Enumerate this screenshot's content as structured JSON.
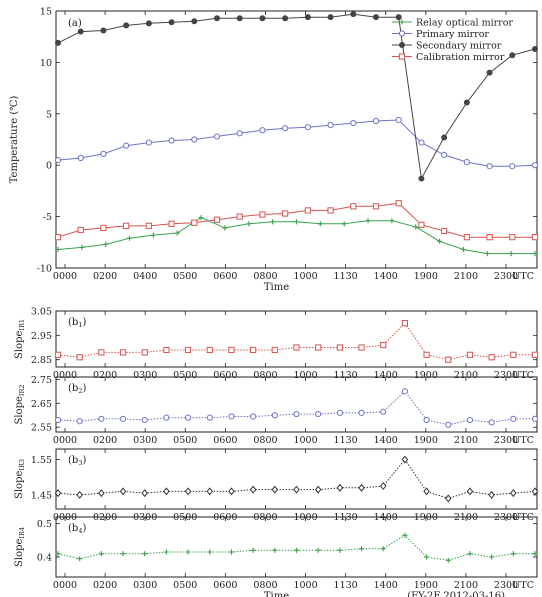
{
  "chart_data": [
    {
      "type": "line",
      "panel_label": "(a)",
      "ylabel": "Temperature (℃)",
      "xlabel": "Time",
      "x_ticklabels": [
        "0000",
        "0200",
        "0400",
        "0500",
        "0600",
        "0800",
        "1000",
        "1130",
        "1400",
        "1900",
        "2100",
        "2300",
        "UTC"
      ],
      "ylim": [
        -10,
        15
      ],
      "y_ticks": [
        "15",
        "10",
        "5",
        "0",
        "-5",
        "-10"
      ],
      "legend_position": "top-right",
      "series": [
        {
          "name": "Relay optical mirror",
          "color": "#3aa34a",
          "marker": "plus",
          "values": [
            -8.2,
            -8.0,
            -7.7,
            -7.1,
            -6.8,
            -6.6,
            -5.1,
            -6.1,
            -5.7,
            -5.5,
            -5.5,
            -5.7,
            -5.7,
            -5.4,
            -5.4,
            -6.0,
            -7.4,
            -8.2,
            -8.6,
            -8.6,
            -8.6
          ]
        },
        {
          "name": "Primary mirror",
          "color": "#6f72c9",
          "marker": "circle",
          "values": [
            0.5,
            0.7,
            1.1,
            1.9,
            2.2,
            2.4,
            2.5,
            2.8,
            3.1,
            3.4,
            3.6,
            3.7,
            3.9,
            4.1,
            4.3,
            4.4,
            2.2,
            1.0,
            0.3,
            -0.1,
            -0.1,
            0.0
          ]
        },
        {
          "name": "Secondary mirror",
          "color": "#444444",
          "marker": "dot",
          "values": [
            11.9,
            13.0,
            13.1,
            13.6,
            13.8,
            13.9,
            14.0,
            14.3,
            14.3,
            14.3,
            14.3,
            14.4,
            14.4,
            14.7,
            14.4,
            14.4,
            -1.3,
            2.7,
            6.1,
            9.0,
            10.7,
            11.3
          ]
        },
        {
          "name": "Calibration mirror",
          "color": "#d9534f",
          "marker": "square",
          "values": [
            -7.0,
            -6.3,
            -6.1,
            -5.9,
            -5.9,
            -5.7,
            -5.6,
            -5.3,
            -5.0,
            -4.8,
            -4.7,
            -4.4,
            -4.4,
            -4.0,
            -4.0,
            -3.7,
            -5.8,
            -6.4,
            -7.0,
            -7.0,
            -7.0,
            -7.0
          ]
        }
      ]
    },
    {
      "type": "line",
      "panel_label": "(b",
      "panel_label_sub": "1",
      "ylabel": "Slope",
      "ylabel_sub": "IR1",
      "ylim": [
        2.82,
        3.05
      ],
      "y_ticks": [
        "3.05",
        "2.95",
        "2.85"
      ],
      "x_ticklabels": [
        "0000",
        "0200",
        "0300",
        "0500",
        "0600",
        "0800",
        "1000",
        "1130",
        "1400",
        "1900",
        "2100",
        "2300",
        "UTC"
      ],
      "series": [
        {
          "color": "#d9534f",
          "marker": "square",
          "values": [
            2.87,
            2.86,
            2.88,
            2.88,
            2.88,
            2.89,
            2.89,
            2.89,
            2.89,
            2.89,
            2.89,
            2.9,
            2.9,
            2.9,
            2.9,
            2.91,
            3.0,
            2.87,
            2.85,
            2.87,
            2.86,
            2.87,
            2.87
          ]
        }
      ]
    },
    {
      "type": "line",
      "panel_label": "(b",
      "panel_label_sub": "2",
      "ylabel": "Slope",
      "ylabel_sub": "IR2",
      "ylim": [
        2.53,
        2.76
      ],
      "y_ticks": [
        "2.75",
        "2.65",
        "2.55"
      ],
      "x_ticklabels": [
        "0000",
        "0200",
        "0300",
        "0500",
        "0600",
        "0800",
        "1000",
        "1130",
        "1400",
        "1900",
        "2100",
        "2300",
        "UTC"
      ],
      "series": [
        {
          "color": "#6f72c9",
          "marker": "circle",
          "values": [
            2.58,
            2.575,
            2.585,
            2.585,
            2.58,
            2.59,
            2.59,
            2.59,
            2.595,
            2.595,
            2.6,
            2.605,
            2.605,
            2.61,
            2.61,
            2.615,
            2.7,
            2.58,
            2.56,
            2.58,
            2.57,
            2.585,
            2.585
          ]
        }
      ]
    },
    {
      "type": "line",
      "panel_label": "(b",
      "panel_label_sub": "3",
      "ylabel": "Slope",
      "ylabel_sub": "IR3",
      "ylim": [
        1.41,
        1.58
      ],
      "y_ticks": [
        "1.55",
        "1.45"
      ],
      "x_ticklabels": [
        "0000",
        "0200",
        "0300",
        "0500",
        "0600",
        "0800",
        "1000",
        "1130",
        "1400",
        "1900",
        "2100",
        "2300",
        "UTC"
      ],
      "series": [
        {
          "color": "#333333",
          "marker": "diamond",
          "values": [
            1.455,
            1.45,
            1.455,
            1.46,
            1.455,
            1.46,
            1.46,
            1.46,
            1.46,
            1.465,
            1.465,
            1.465,
            1.465,
            1.47,
            1.47,
            1.475,
            1.55,
            1.46,
            1.44,
            1.46,
            1.45,
            1.455,
            1.46
          ]
        }
      ]
    },
    {
      "type": "line",
      "panel_label": "(b",
      "panel_label_sub": "4",
      "ylabel": "Slope",
      "ylabel_sub": "IR4",
      "xlabel": "Time",
      "ylim": [
        0.34,
        0.52
      ],
      "y_ticks": [
        "0.5",
        "0.4"
      ],
      "x_ticklabels": [
        "0000",
        "0200",
        "0300",
        "0500",
        "0600",
        "0800",
        "1000",
        "1130",
        "1400",
        "1900",
        "2100",
        "2300",
        "UTC"
      ],
      "note": "(FY-2F  2012-03-16)",
      "series": [
        {
          "color": "#3aa34a",
          "marker": "plus",
          "values": [
            0.41,
            0.395,
            0.41,
            0.41,
            0.41,
            0.415,
            0.415,
            0.415,
            0.415,
            0.42,
            0.42,
            0.42,
            0.42,
            0.42,
            0.425,
            0.425,
            0.465,
            0.4,
            0.39,
            0.41,
            0.4,
            0.41,
            0.41
          ]
        }
      ]
    }
  ]
}
